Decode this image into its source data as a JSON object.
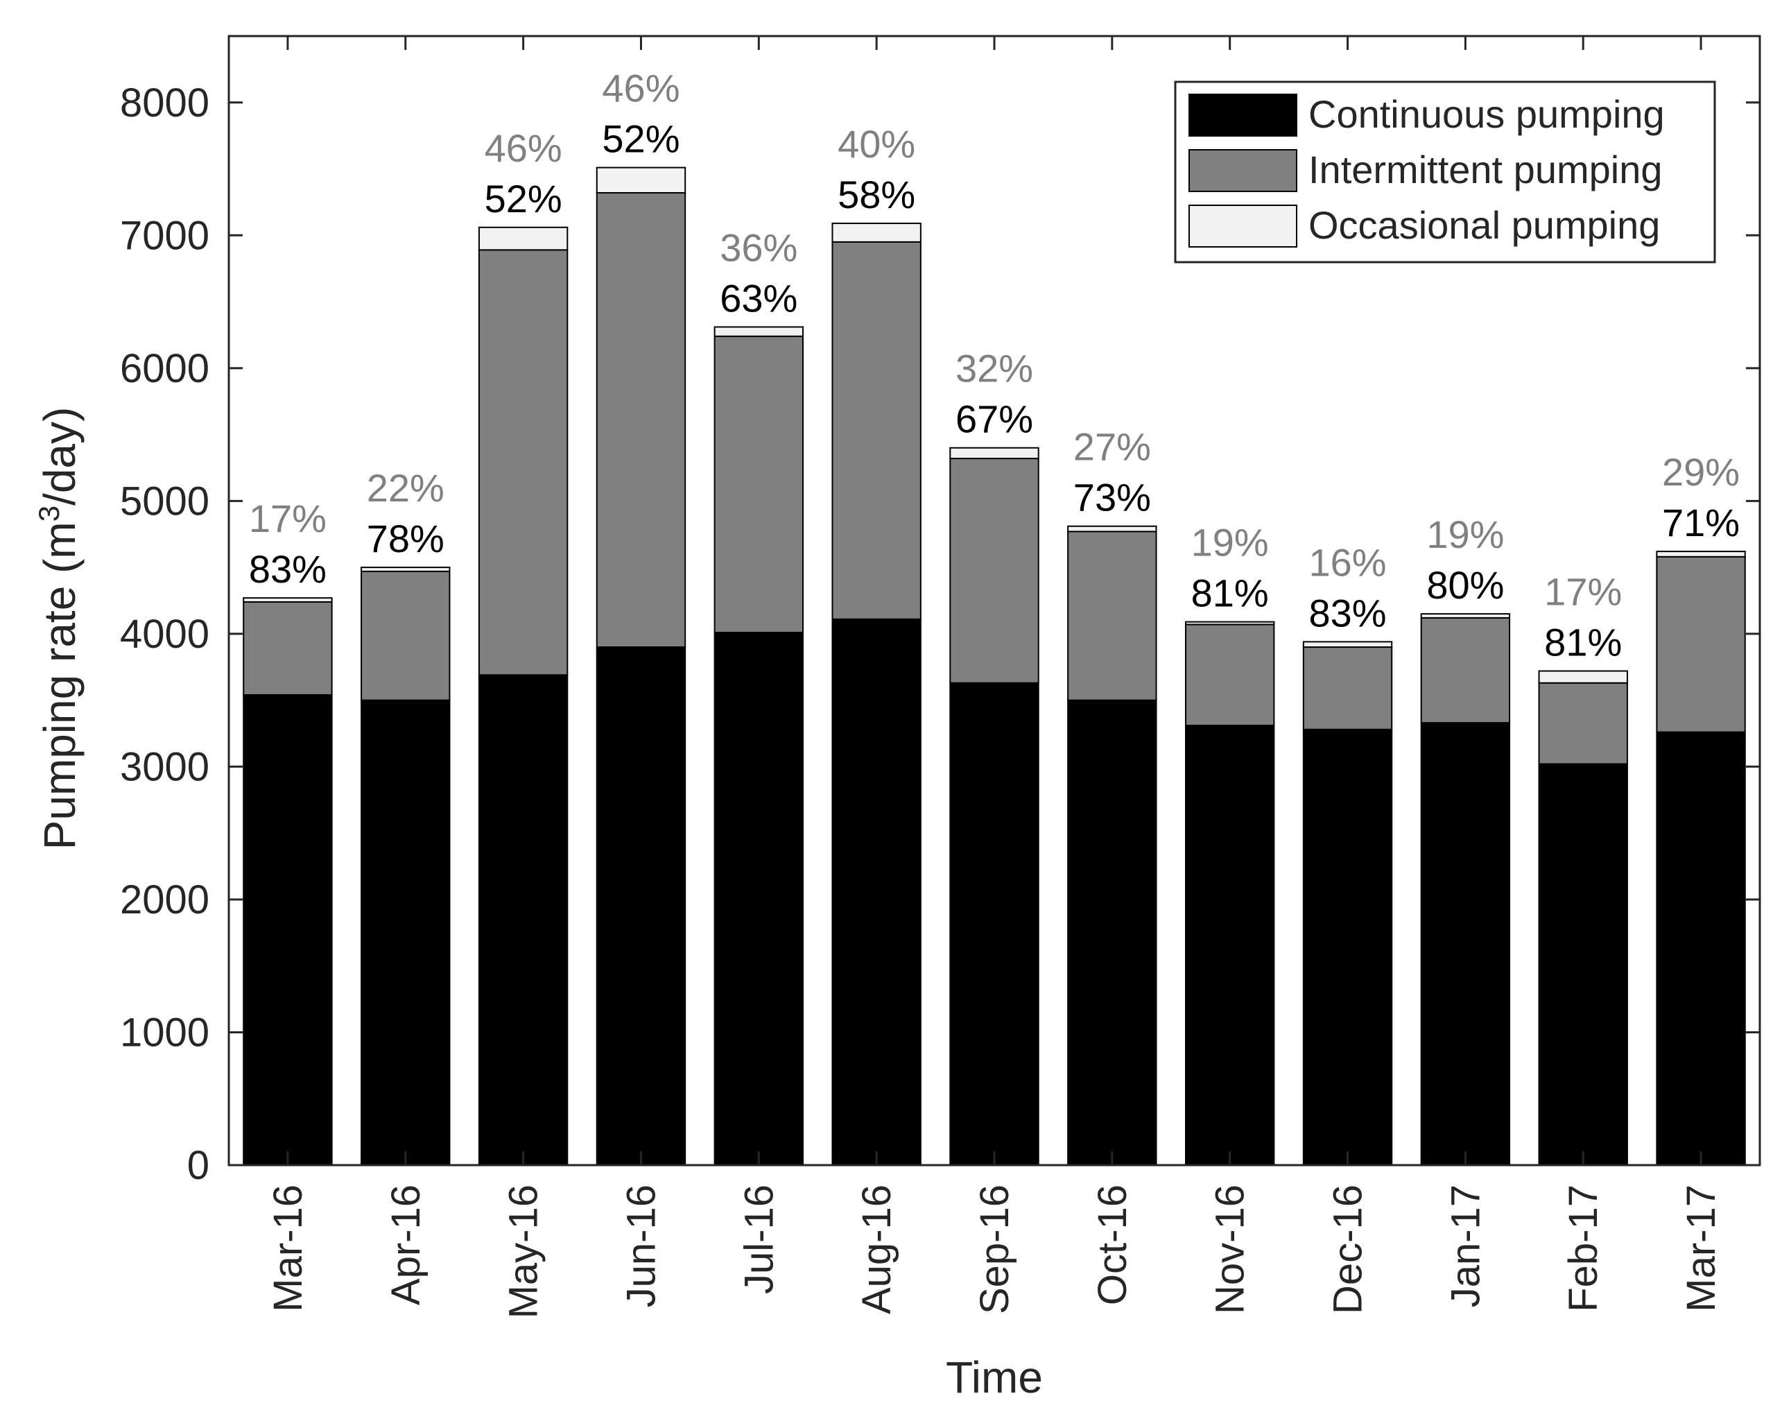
{
  "chart_data": {
    "type": "bar",
    "stacked": true,
    "title": "",
    "xlabel": "Time",
    "ylabel_main": "Pumping rate (m",
    "ylabel_sup": "3",
    "ylabel_tail": "/day)",
    "ylim": [
      0,
      8500
    ],
    "yticks": [
      0,
      1000,
      2000,
      3000,
      4000,
      5000,
      6000,
      7000,
      8000
    ],
    "legend_position": "top-right",
    "categories": [
      "Mar-16",
      "Apr-16",
      "May-16",
      "Jun-16",
      "Jul-16",
      "Aug-16",
      "Sep-16",
      "Oct-16",
      "Nov-16",
      "Dec-16",
      "Jan-17",
      "Feb-17",
      "Mar-17"
    ],
    "series": [
      {
        "name": "Continuous pumping",
        "color": "#000000",
        "values": [
          3540,
          3500,
          3690,
          3900,
          4010,
          4110,
          3630,
          3500,
          3310,
          3280,
          3330,
          3020,
          3260
        ]
      },
      {
        "name": "Intermittent pumping",
        "color": "#808080",
        "values": [
          700,
          970,
          3200,
          3420,
          2230,
          2840,
          1690,
          1270,
          760,
          620,
          790,
          610,
          1320
        ]
      },
      {
        "name": "Occasional pumping",
        "color": "#f2f2f2",
        "values": [
          30,
          30,
          170,
          190,
          70,
          140,
          80,
          40,
          20,
          40,
          30,
          90,
          40
        ]
      }
    ],
    "labels_continuous": [
      "83%",
      "78%",
      "52%",
      "52%",
      "63%",
      "58%",
      "67%",
      "73%",
      "81%",
      "83%",
      "80%",
      "81%",
      "71%"
    ],
    "labels_intermittent": [
      "17%",
      "22%",
      "46%",
      "46%",
      "36%",
      "40%",
      "32%",
      "27%",
      "19%",
      "16%",
      "19%",
      "17%",
      "29%"
    ],
    "label_colors": {
      "continuous": "#000000",
      "intermittent": "#808080"
    }
  }
}
